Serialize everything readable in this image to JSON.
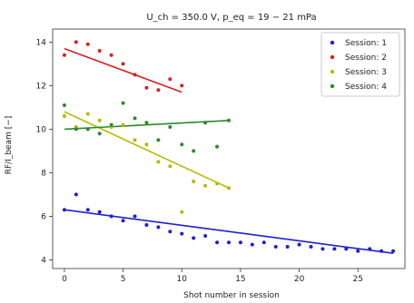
{
  "chart_data": {
    "type": "scatter",
    "title": "U_ch = 350.0 V, p_eq = 19 − 21 mPa",
    "xlabel": "Shot number in session",
    "ylabel": "RF/I_beam [−]",
    "xlim": [
      -1,
      29
    ],
    "ylim": [
      3.6,
      14.6
    ],
    "xticks": [
      0,
      5,
      10,
      15,
      20,
      25
    ],
    "yticks": [
      4,
      6,
      8,
      10,
      12,
      14
    ],
    "grid": false,
    "legend_position": "top-right",
    "series": [
      {
        "name": "Session: 1",
        "color": "#1f1fcf",
        "x": [
          0,
          1,
          2,
          3,
          4,
          5,
          6,
          7,
          8,
          9,
          10,
          11,
          12,
          13,
          14,
          15,
          16,
          17,
          18,
          19,
          20,
          21,
          22,
          23,
          24,
          25,
          26,
          27,
          28
        ],
        "y": [
          6.3,
          7.0,
          6.3,
          6.2,
          6.0,
          5.8,
          6.0,
          5.6,
          5.5,
          5.3,
          5.2,
          5.0,
          5.1,
          4.8,
          4.8,
          4.8,
          4.7,
          4.8,
          4.6,
          4.6,
          4.7,
          4.6,
          4.5,
          4.5,
          4.5,
          4.4,
          4.5,
          4.4,
          4.4
        ],
        "fit": [
          [
            0,
            6.3
          ],
          [
            28,
            4.3
          ]
        ]
      },
      {
        "name": "Session: 2",
        "color": "#d62020",
        "x": [
          0,
          1,
          2,
          3,
          4,
          5,
          6,
          7,
          8,
          9,
          10
        ],
        "y": [
          13.4,
          14.0,
          13.9,
          13.6,
          13.4,
          13.0,
          12.5,
          11.9,
          11.8,
          12.3,
          12.0
        ],
        "fit": [
          [
            0,
            13.7
          ],
          [
            10,
            11.7
          ]
        ]
      },
      {
        "name": "Session: 3",
        "color": "#b8b800",
        "x": [
          0,
          1,
          2,
          3,
          4,
          5,
          6,
          7,
          8,
          9,
          10,
          11,
          12,
          13,
          14
        ],
        "y": [
          10.6,
          10.1,
          10.7,
          10.4,
          10.1,
          10.2,
          9.5,
          9.3,
          8.5,
          8.3,
          6.2,
          7.6,
          7.4,
          7.5,
          7.3
        ],
        "fit": [
          [
            0,
            10.8
          ],
          [
            14,
            7.3
          ]
        ]
      },
      {
        "name": "Session: 4",
        "color": "#2a8a2a",
        "x": [
          0,
          1,
          2,
          3,
          4,
          5,
          6,
          7,
          8,
          9,
          10,
          11,
          12,
          13,
          14
        ],
        "y": [
          11.1,
          10.0,
          10.0,
          9.8,
          10.2,
          11.2,
          10.5,
          10.3,
          9.5,
          10.1,
          9.3,
          9.0,
          10.3,
          9.2,
          10.4
        ],
        "fit": [
          [
            0,
            10.0
          ],
          [
            14,
            10.4
          ]
        ]
      }
    ]
  }
}
